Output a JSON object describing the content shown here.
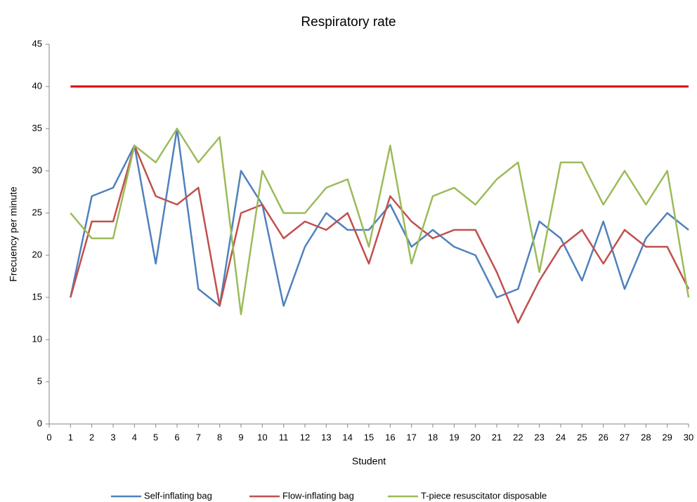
{
  "chart_data": {
    "type": "line",
    "title": "Respiratory rate",
    "x_label": "Student",
    "y_label": "Frecuency per minute",
    "x": [
      1,
      2,
      3,
      4,
      5,
      6,
      7,
      8,
      9,
      10,
      11,
      12,
      13,
      14,
      15,
      16,
      17,
      18,
      19,
      20,
      21,
      22,
      23,
      24,
      25,
      26,
      27,
      28,
      29,
      30
    ],
    "series": [
      {
        "name": "Self-inflating bag",
        "color": "#4f81bd",
        "values": [
          15,
          27,
          28,
          33,
          19,
          35,
          16,
          14,
          30,
          26,
          14,
          21,
          25,
          23,
          23,
          26,
          21,
          23,
          21,
          20,
          15,
          16,
          24,
          22,
          17,
          24,
          16,
          22,
          25,
          23
        ]
      },
      {
        "name": "Flow-inflating bag",
        "color": "#c0504d",
        "values": [
          15,
          24,
          24,
          33,
          27,
          26,
          28,
          14,
          25,
          26,
          22,
          24,
          23,
          25,
          19,
          27,
          24,
          22,
          23,
          23,
          18,
          12,
          17,
          21,
          23,
          19,
          23,
          21,
          21,
          16
        ]
      },
      {
        "name": "T-piece resuscitator disposable",
        "color": "#9bbb59",
        "values": [
          25,
          22,
          22,
          33,
          31,
          35,
          31,
          34,
          13,
          30,
          25,
          25,
          28,
          29,
          21,
          33,
          19,
          27,
          28,
          26,
          29,
          31,
          18,
          31,
          31,
          26,
          30,
          26,
          30,
          15
        ]
      }
    ],
    "hline": {
      "y": 40,
      "xmin": 1,
      "xmax": 30,
      "color": "#e00000"
    },
    "xlim": [
      0,
      30
    ],
    "xticks": [
      0,
      1,
      2,
      3,
      4,
      5,
      6,
      7,
      8,
      9,
      10,
      11,
      12,
      13,
      14,
      15,
      16,
      17,
      18,
      19,
      20,
      21,
      22,
      23,
      24,
      25,
      26,
      27,
      28,
      29,
      30
    ],
    "ylim": [
      0,
      45
    ],
    "yticks": [
      0,
      5,
      10,
      15,
      20,
      25,
      30,
      35,
      40,
      45
    ],
    "grid": false,
    "legend_position": "bottom"
  }
}
